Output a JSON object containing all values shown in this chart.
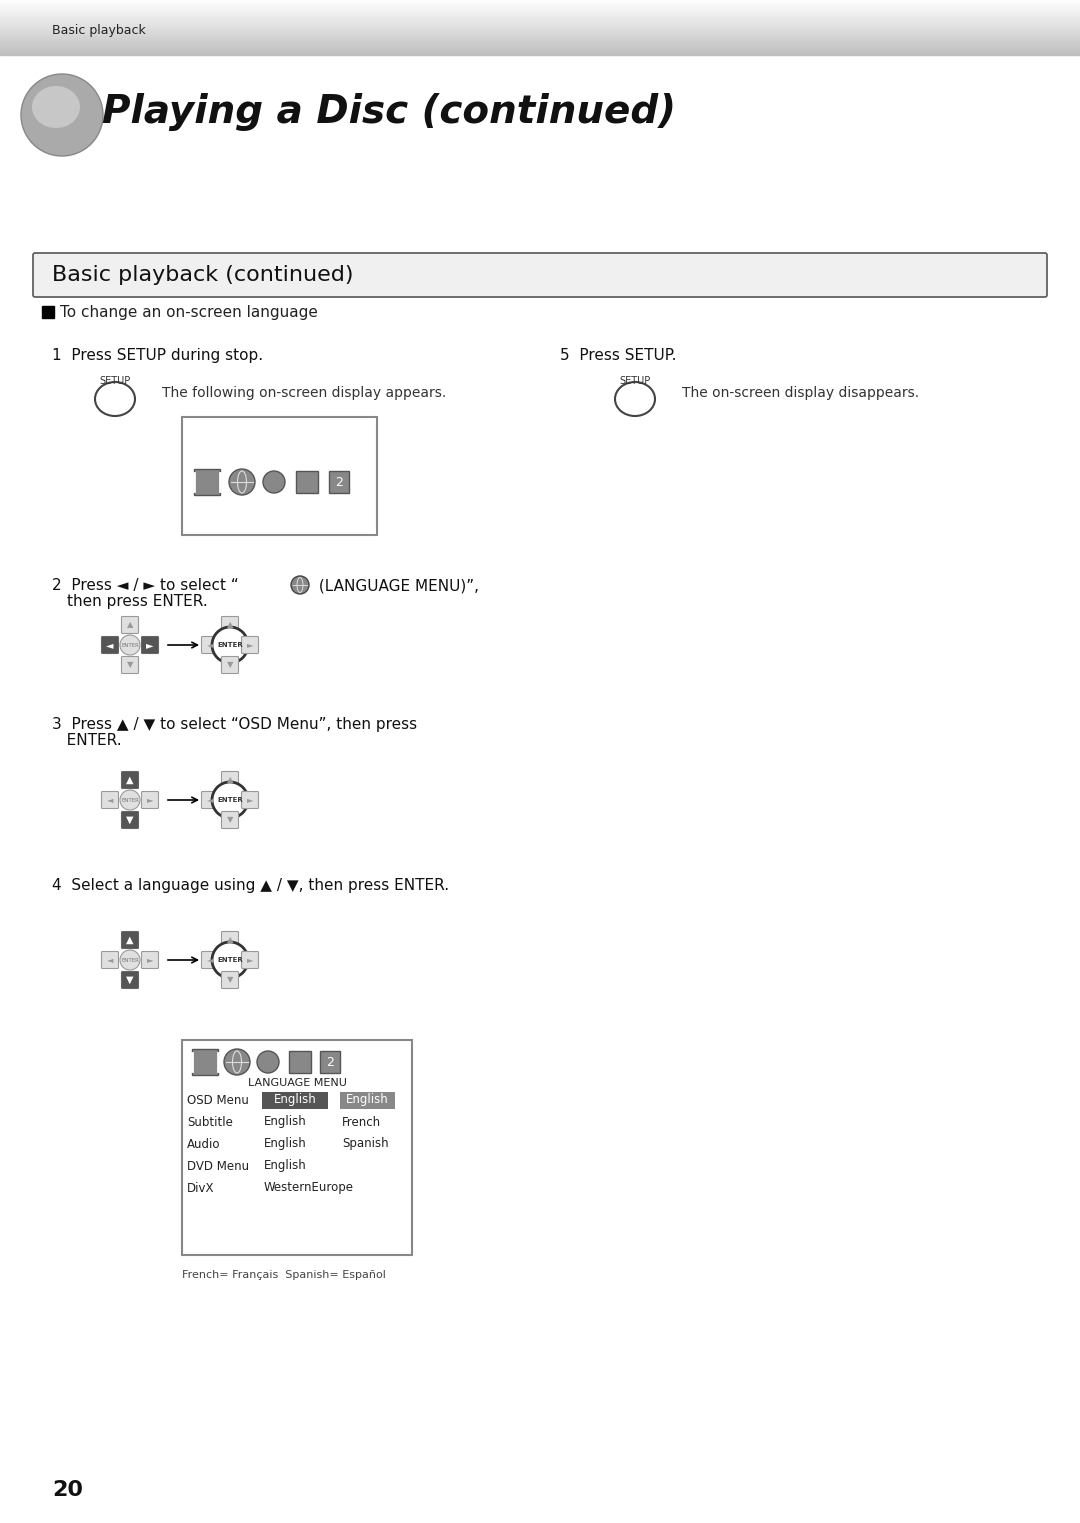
{
  "page_title": "Playing a Disc (continued)",
  "header_text": "Basic playback",
  "section_title": "Basic playback (continued)",
  "section_subtitle": "To change an on-screen language",
  "bg_color": "#ffffff",
  "step1_text": "1  Press SETUP during stop.",
  "step1_sub": "The following on-screen display appears.",
  "step5_text": "5  Press SETUP.",
  "step5_sub": "The on-screen display disappears.",
  "step2_line1": "2  Press ◄ / ► to select “  (LANGUAGE MENU)”,",
  "step2_line2": "   then press ENTER.",
  "step3_line1": "3  Press ▲ / ▼ to select “OSD Menu”, then press",
  "step3_line2": "   ENTER.",
  "step4_line1": "4  Select a language using ▲ / ▼, then press ENTER.",
  "language_menu_rows": [
    [
      "OSD Menu",
      "English",
      "English"
    ],
    [
      "Subtitle",
      "English",
      "French"
    ],
    [
      "Audio",
      "English",
      "Spanish"
    ],
    [
      "DVD Menu",
      "English",
      ""
    ],
    [
      "DivX",
      "WesternEurope",
      ""
    ]
  ],
  "language_menu_title": "LANGUAGE MENU",
  "language_menu_note": "French= Français  Spanish= Español",
  "page_number": "20"
}
